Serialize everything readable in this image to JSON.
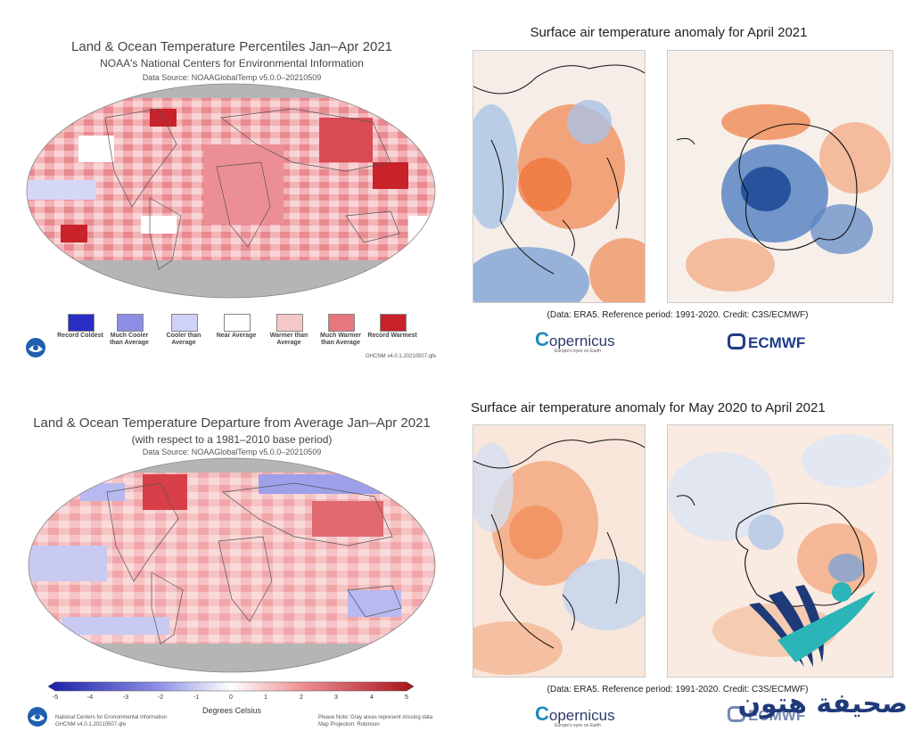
{
  "noaa_percentiles": {
    "title": "Land & Ocean Temperature Percentiles Jan–Apr 2021",
    "org": "NOAA's National Centers for Environmental Information",
    "source": "Data Source: NOAAGlobalTemp v5.0.0–20210509",
    "footnote": "GHCNM v4.0.1.20210507.qfe",
    "legend": [
      {
        "label": "Record Coldest",
        "color": "#2a2ec4"
      },
      {
        "label": "Much Cooler than Average",
        "color": "#8c8fe3"
      },
      {
        "label": "Cooler than Average",
        "color": "#cfd2f6"
      },
      {
        "label": "Near Average",
        "color": "#ffffff"
      },
      {
        "label": "Warmer than Average",
        "color": "#f6c7c9"
      },
      {
        "label": "Much Warmer than Average",
        "color": "#e8777d"
      },
      {
        "label": "Record Warmest",
        "color": "#c8222b"
      }
    ]
  },
  "noaa_departure": {
    "title": "Land & Ocean Temperature Departure from Average Jan–Apr 2021",
    "subtitle": "(with respect to a 1981–2010 base period)",
    "source": "Data Source: NOAAGlobalTemp v5.0.0–20210509",
    "colorbar_ticks": [
      "-5",
      "-4",
      "-3",
      "-2",
      "-1",
      "0",
      "1",
      "2",
      "3",
      "4",
      "5"
    ],
    "colorbar_label": "Degrees Celsius",
    "footer_left_1": "National Centers for Environmental Information",
    "footer_left_2": "GHCNM v4.0.1.20210507.qfe",
    "footer_right_1": "Please Note: Gray areas represent missing data",
    "footer_right_2": "Map Projection: Robinson"
  },
  "era5_april": {
    "title": "Surface air temperature anomaly for April 2021",
    "credit": "(Data: ERA5. Reference period: 1991-2020. Credit: C3S/ECMWF)"
  },
  "era5_year": {
    "title": "Surface air temperature anomaly for May 2020 to April 2021",
    "credit": "(Data: ERA5. Reference period: 1991-2020. Credit: C3S/ECMWF)"
  },
  "logos": {
    "copernicus": "opernicus",
    "copernicus_c": "C",
    "copernicus_tag": "Europe's eyes on Earth",
    "ecmwf": "ECMWF",
    "publisher": "صحيفة هتون"
  },
  "colors": {
    "warm": "#e8777d",
    "cool": "#8c8fe3",
    "missing": "#b5b5b5",
    "era_warm": "#f08a55",
    "era_cool": "#5a86c4",
    "brand_teal": "#2bb5b8",
    "brand_navy": "#1e3a78"
  }
}
